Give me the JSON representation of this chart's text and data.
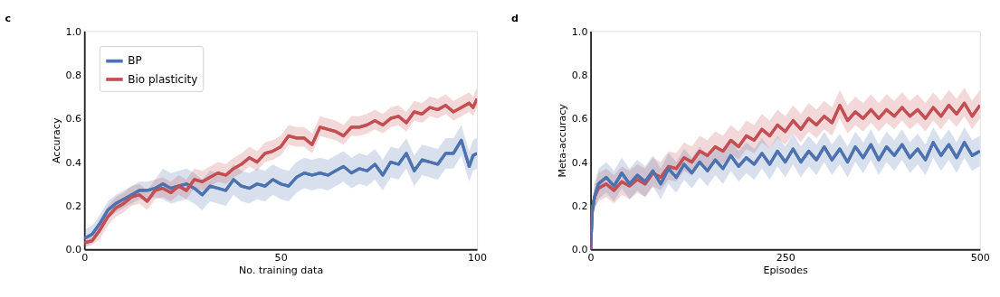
{
  "chart_data": [
    {
      "type": "line",
      "title": "c",
      "xlabel": "No. training data",
      "ylabel": "Accuracy",
      "xlim": [
        0,
        100
      ],
      "xticks": [
        0,
        50,
        100
      ],
      "ylim": [
        0,
        1
      ],
      "yticks": [
        {
          "value": 0,
          "label": "0.0"
        },
        {
          "value": 0.2,
          "label": "0.2"
        },
        {
          "value": 0.4,
          "label": "0.4"
        },
        {
          "value": 0.6,
          "label": "0.6"
        },
        {
          "value": 0.8,
          "label": "0.8"
        },
        {
          "value": 1,
          "label": "1.0"
        }
      ],
      "legend": "top left",
      "series": [
        {
          "name": "BP",
          "color": "#4c72b0",
          "x": [
            0,
            2,
            4,
            6,
            8,
            10,
            12,
            14,
            16,
            18,
            20,
            22,
            24,
            26,
            28,
            30,
            32,
            34,
            36,
            38,
            40,
            42,
            44,
            46,
            48,
            50,
            52,
            54,
            56,
            58,
            60,
            62,
            64,
            66,
            68,
            70,
            72,
            74,
            76,
            78,
            80,
            82,
            84,
            86,
            88,
            90,
            92,
            94,
            96,
            98,
            99,
            100
          ],
          "values": [
            0.05,
            0.07,
            0.12,
            0.18,
            0.21,
            0.23,
            0.25,
            0.27,
            0.27,
            0.28,
            0.3,
            0.28,
            0.29,
            0.3,
            0.28,
            0.25,
            0.29,
            0.28,
            0.27,
            0.32,
            0.29,
            0.28,
            0.3,
            0.29,
            0.32,
            0.3,
            0.29,
            0.33,
            0.35,
            0.34,
            0.35,
            0.34,
            0.36,
            0.38,
            0.35,
            0.37,
            0.36,
            0.39,
            0.34,
            0.4,
            0.39,
            0.44,
            0.36,
            0.41,
            0.4,
            0.39,
            0.44,
            0.44,
            0.5,
            0.38,
            0.43,
            0.44
          ],
          "lower": [
            0.01,
            0.03,
            0.08,
            0.14,
            0.17,
            0.19,
            0.21,
            0.23,
            0.23,
            0.24,
            0.23,
            0.21,
            0.22,
            0.23,
            0.21,
            0.18,
            0.22,
            0.21,
            0.2,
            0.25,
            0.22,
            0.21,
            0.23,
            0.22,
            0.25,
            0.23,
            0.22,
            0.26,
            0.28,
            0.27,
            0.28,
            0.27,
            0.29,
            0.31,
            0.28,
            0.3,
            0.29,
            0.32,
            0.27,
            0.33,
            0.32,
            0.37,
            0.29,
            0.34,
            0.33,
            0.32,
            0.37,
            0.37,
            0.43,
            0.31,
            0.36,
            0.37
          ],
          "upper": [
            0.09,
            0.11,
            0.16,
            0.22,
            0.25,
            0.27,
            0.29,
            0.31,
            0.31,
            0.32,
            0.37,
            0.35,
            0.36,
            0.37,
            0.35,
            0.32,
            0.36,
            0.35,
            0.34,
            0.39,
            0.36,
            0.35,
            0.37,
            0.36,
            0.39,
            0.37,
            0.36,
            0.4,
            0.42,
            0.41,
            0.42,
            0.41,
            0.43,
            0.45,
            0.42,
            0.44,
            0.43,
            0.46,
            0.41,
            0.47,
            0.46,
            0.51,
            0.43,
            0.48,
            0.47,
            0.46,
            0.51,
            0.51,
            0.57,
            0.45,
            0.5,
            0.51
          ]
        },
        {
          "name": "Bio plasticity",
          "color": "#c44e52",
          "x": [
            0,
            2,
            4,
            6,
            8,
            10,
            12,
            14,
            16,
            18,
            20,
            22,
            24,
            26,
            28,
            30,
            32,
            34,
            36,
            38,
            40,
            42,
            44,
            46,
            48,
            50,
            52,
            54,
            56,
            58,
            60,
            62,
            64,
            66,
            68,
            70,
            72,
            74,
            76,
            78,
            80,
            82,
            84,
            86,
            88,
            90,
            92,
            94,
            96,
            98,
            99,
            100
          ],
          "values": [
            0.03,
            0.04,
            0.09,
            0.15,
            0.19,
            0.21,
            0.24,
            0.25,
            0.22,
            0.27,
            0.28,
            0.26,
            0.29,
            0.27,
            0.32,
            0.31,
            0.33,
            0.35,
            0.34,
            0.37,
            0.39,
            0.42,
            0.4,
            0.44,
            0.45,
            0.47,
            0.52,
            0.51,
            0.51,
            0.48,
            0.56,
            0.55,
            0.54,
            0.52,
            0.56,
            0.56,
            0.57,
            0.59,
            0.57,
            0.6,
            0.61,
            0.58,
            0.63,
            0.62,
            0.65,
            0.64,
            0.66,
            0.63,
            0.65,
            0.67,
            0.65,
            0.69
          ],
          "lower": [
            0.01,
            0.02,
            0.05,
            0.11,
            0.15,
            0.17,
            0.2,
            0.21,
            0.18,
            0.23,
            0.24,
            0.22,
            0.25,
            0.23,
            0.28,
            0.27,
            0.29,
            0.31,
            0.3,
            0.33,
            0.35,
            0.38,
            0.36,
            0.4,
            0.41,
            0.43,
            0.48,
            0.47,
            0.47,
            0.44,
            0.52,
            0.51,
            0.5,
            0.48,
            0.52,
            0.52,
            0.53,
            0.55,
            0.53,
            0.56,
            0.57,
            0.54,
            0.59,
            0.58,
            0.61,
            0.6,
            0.62,
            0.59,
            0.61,
            0.63,
            0.61,
            0.65
          ],
          "upper": [
            0.05,
            0.07,
            0.14,
            0.2,
            0.24,
            0.26,
            0.29,
            0.3,
            0.27,
            0.32,
            0.33,
            0.31,
            0.34,
            0.32,
            0.37,
            0.36,
            0.38,
            0.4,
            0.39,
            0.42,
            0.44,
            0.47,
            0.45,
            0.49,
            0.5,
            0.52,
            0.57,
            0.56,
            0.56,
            0.53,
            0.61,
            0.6,
            0.59,
            0.57,
            0.61,
            0.61,
            0.62,
            0.64,
            0.62,
            0.65,
            0.66,
            0.63,
            0.68,
            0.67,
            0.7,
            0.69,
            0.71,
            0.68,
            0.7,
            0.72,
            0.7,
            0.74
          ]
        }
      ]
    },
    {
      "type": "line",
      "title": "d",
      "xlabel": "Episodes",
      "ylabel": "Meta-accuracy",
      "xlim": [
        0,
        500
      ],
      "xticks": [
        0,
        250,
        500
      ],
      "ylim": [
        0,
        1
      ],
      "yticks": [
        {
          "value": 0,
          "label": "0.0"
        },
        {
          "value": 0.2,
          "label": "0.2"
        },
        {
          "value": 0.4,
          "label": "0.4"
        },
        {
          "value": 0.6,
          "label": "0.6"
        },
        {
          "value": 0.8,
          "label": "0.8"
        },
        {
          "value": 1,
          "label": "1.0"
        }
      ],
      "series": [
        {
          "color": "#c44e52",
          "x": [
            0,
            2,
            5,
            10,
            20,
            30,
            40,
            50,
            60,
            70,
            80,
            90,
            100,
            110,
            120,
            130,
            140,
            150,
            160,
            170,
            180,
            190,
            200,
            210,
            220,
            230,
            240,
            250,
            260,
            270,
            280,
            290,
            300,
            310,
            320,
            330,
            340,
            350,
            360,
            370,
            380,
            390,
            400,
            410,
            420,
            430,
            440,
            450,
            460,
            470,
            480,
            490,
            500
          ],
          "values": [
            0,
            0.18,
            0.24,
            0.28,
            0.3,
            0.27,
            0.31,
            0.29,
            0.32,
            0.3,
            0.35,
            0.33,
            0.38,
            0.37,
            0.42,
            0.4,
            0.45,
            0.43,
            0.47,
            0.45,
            0.5,
            0.47,
            0.52,
            0.5,
            0.55,
            0.52,
            0.57,
            0.54,
            0.59,
            0.55,
            0.6,
            0.57,
            0.61,
            0.58,
            0.66,
            0.59,
            0.63,
            0.6,
            0.64,
            0.6,
            0.64,
            0.61,
            0.65,
            0.61,
            0.64,
            0.6,
            0.65,
            0.61,
            0.66,
            0.62,
            0.67,
            0.61,
            0.66
          ],
          "lower": [
            0,
            0.14,
            0.19,
            0.22,
            0.24,
            0.21,
            0.25,
            0.23,
            0.26,
            0.24,
            0.29,
            0.27,
            0.32,
            0.31,
            0.36,
            0.34,
            0.39,
            0.37,
            0.41,
            0.39,
            0.44,
            0.41,
            0.46,
            0.44,
            0.49,
            0.46,
            0.51,
            0.48,
            0.53,
            0.49,
            0.54,
            0.51,
            0.55,
            0.52,
            0.6,
            0.53,
            0.57,
            0.54,
            0.58,
            0.54,
            0.58,
            0.55,
            0.59,
            0.55,
            0.58,
            0.54,
            0.59,
            0.55,
            0.6,
            0.56,
            0.61,
            0.55,
            0.6
          ],
          "upper": [
            0,
            0.22,
            0.29,
            0.35,
            0.37,
            0.34,
            0.38,
            0.36,
            0.39,
            0.37,
            0.42,
            0.4,
            0.45,
            0.44,
            0.49,
            0.47,
            0.52,
            0.5,
            0.54,
            0.52,
            0.57,
            0.54,
            0.59,
            0.57,
            0.62,
            0.59,
            0.64,
            0.61,
            0.66,
            0.62,
            0.67,
            0.64,
            0.68,
            0.65,
            0.73,
            0.66,
            0.7,
            0.67,
            0.71,
            0.67,
            0.71,
            0.68,
            0.72,
            0.68,
            0.71,
            0.67,
            0.72,
            0.68,
            0.73,
            0.69,
            0.74,
            0.68,
            0.73
          ]
        },
        {
          "color": "#4c72b0",
          "x": [
            0,
            2,
            5,
            10,
            20,
            30,
            40,
            50,
            60,
            70,
            80,
            90,
            100,
            110,
            120,
            130,
            140,
            150,
            160,
            170,
            180,
            190,
            200,
            210,
            220,
            230,
            240,
            250,
            260,
            270,
            280,
            290,
            300,
            310,
            320,
            330,
            340,
            350,
            360,
            370,
            380,
            390,
            400,
            410,
            420,
            430,
            440,
            450,
            460,
            470,
            480,
            490,
            500
          ],
          "values": [
            0,
            0.17,
            0.24,
            0.3,
            0.33,
            0.29,
            0.35,
            0.3,
            0.34,
            0.31,
            0.36,
            0.3,
            0.37,
            0.33,
            0.39,
            0.35,
            0.4,
            0.36,
            0.41,
            0.37,
            0.43,
            0.38,
            0.42,
            0.39,
            0.44,
            0.39,
            0.45,
            0.4,
            0.46,
            0.4,
            0.45,
            0.41,
            0.47,
            0.41,
            0.46,
            0.4,
            0.47,
            0.42,
            0.48,
            0.41,
            0.47,
            0.43,
            0.48,
            0.42,
            0.46,
            0.41,
            0.49,
            0.43,
            0.48,
            0.42,
            0.49,
            0.43,
            0.45
          ],
          "lower": [
            0,
            0.12,
            0.18,
            0.23,
            0.26,
            0.22,
            0.28,
            0.23,
            0.27,
            0.24,
            0.29,
            0.23,
            0.3,
            0.26,
            0.32,
            0.28,
            0.33,
            0.29,
            0.34,
            0.3,
            0.36,
            0.31,
            0.35,
            0.32,
            0.37,
            0.32,
            0.38,
            0.33,
            0.39,
            0.33,
            0.38,
            0.34,
            0.4,
            0.34,
            0.39,
            0.33,
            0.4,
            0.35,
            0.41,
            0.34,
            0.4,
            0.36,
            0.41,
            0.35,
            0.39,
            0.34,
            0.42,
            0.36,
            0.41,
            0.35,
            0.42,
            0.36,
            0.38
          ],
          "upper": [
            0,
            0.22,
            0.3,
            0.37,
            0.4,
            0.36,
            0.42,
            0.37,
            0.41,
            0.38,
            0.43,
            0.37,
            0.44,
            0.4,
            0.46,
            0.42,
            0.47,
            0.43,
            0.48,
            0.44,
            0.5,
            0.45,
            0.49,
            0.46,
            0.51,
            0.46,
            0.52,
            0.47,
            0.53,
            0.47,
            0.52,
            0.48,
            0.54,
            0.48,
            0.53,
            0.47,
            0.54,
            0.49,
            0.55,
            0.48,
            0.54,
            0.5,
            0.55,
            0.49,
            0.53,
            0.48,
            0.56,
            0.5,
            0.55,
            0.49,
            0.56,
            0.5,
            0.52
          ]
        }
      ]
    }
  ]
}
